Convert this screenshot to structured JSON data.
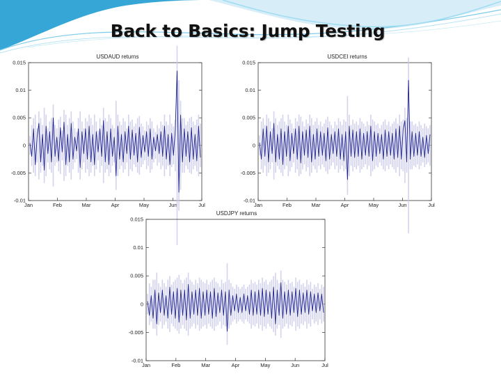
{
  "slide": {
    "title": "Back to Basics: Jump Testing"
  },
  "theme": {
    "swoosh_dark": "#1a8fc0",
    "swoosh_light": "#9fdcf2",
    "series_color": "#1a1f8c",
    "noise_color": "#c8c8e8"
  },
  "chart_data": [
    {
      "type": "line",
      "title": "USDAUD returns",
      "x_ticks": [
        "Jan",
        "Feb",
        "Mar",
        "Apr",
        "May",
        "Jun",
        "Jul"
      ],
      "y_ticks": [
        "0.015",
        "0.01",
        "0.005",
        "0",
        "-0.005",
        "-0.01"
      ],
      "ylim": [
        -0.01,
        0.015
      ],
      "xlim": [
        0,
        6
      ],
      "grid": false,
      "series": [
        {
          "values": [
            0.0004,
            -0.002,
            0.003,
            -0.0035,
            0.0015,
            0.004,
            -0.003,
            0.002,
            -0.0045,
            0.0035,
            -0.0015,
            0.0025,
            -0.003,
            0.005,
            -0.002,
            0.0015,
            -0.0028,
            0.0032,
            -0.0012,
            0.0042,
            -0.0035,
            0.002,
            -0.003,
            0.004,
            -0.0025,
            0.0015,
            -0.001,
            0.003,
            -0.004,
            0.0025,
            -0.0015,
            0.003,
            -0.0025,
            0.0035,
            -0.003,
            0.002,
            -0.0035,
            0.0025,
            -0.0012,
            0.003,
            -0.002,
            0.0045,
            -0.003,
            0.0025,
            -0.0035,
            0.003,
            -0.002,
            0.0015,
            -0.0055,
            0.0035,
            -0.0025,
            0.002,
            -0.003,
            0.0025,
            -0.0015,
            0.0035,
            -0.0025,
            0.0028,
            -0.0018,
            0.0022,
            -0.003,
            0.0033,
            -0.0022,
            0.0018,
            -0.0012,
            0.0025,
            -0.002,
            0.003,
            -0.0025,
            0.0015,
            -0.001,
            0.002,
            -0.0015,
            0.0025,
            -0.002,
            0.0035,
            -0.0025,
            0.002,
            -0.0035,
            0.0022,
            -0.0018,
            0.0028,
            0.0135,
            -0.0085,
            0.0055,
            -0.003,
            0.003,
            -0.002,
            0.0025,
            -0.003,
            0.0032,
            -0.0025,
            0.002,
            -0.0028,
            0.0035,
            -0.0022
          ]
        }
      ]
    },
    {
      "type": "line",
      "title": "USDCEI returns",
      "x_ticks": [
        "Jan",
        "Feb",
        "Mar",
        "Apr",
        "May",
        "Jun",
        "Jul"
      ],
      "y_ticks": [
        "0.015",
        "0.01",
        "0.005",
        "0",
        "-0.005",
        "-0.01"
      ],
      "ylim": [
        -0.01,
        0.015
      ],
      "xlim": [
        0,
        6
      ],
      "grid": false,
      "series": [
        {
          "values": [
            0.0005,
            -0.0025,
            0.003,
            -0.002,
            0.0035,
            -0.003,
            0.0025,
            -0.0015,
            0.004,
            -0.003,
            0.002,
            -0.0025,
            0.003,
            -0.0035,
            0.0025,
            -0.002,
            0.0035,
            -0.0028,
            0.0022,
            -0.0015,
            0.003,
            -0.0025,
            0.0035,
            -0.0032,
            0.0025,
            -0.0018,
            0.0028,
            -0.0022,
            0.0035,
            -0.003,
            0.002,
            -0.0025,
            0.003,
            -0.002,
            0.0025,
            -0.0018,
            0.0022,
            -0.0028,
            0.0032,
            -0.0025,
            0.002,
            -0.0015,
            0.0025,
            -0.002,
            0.003,
            -0.0025,
            0.002,
            -0.0028,
            0.0025,
            -0.0062,
            0.0035,
            -0.002,
            0.0028,
            -0.0022,
            0.0025,
            -0.002,
            0.003,
            -0.0025,
            0.0022,
            -0.0018,
            0.0025,
            -0.002,
            0.0035,
            -0.0028,
            0.0025,
            -0.002,
            0.0022,
            -0.0015,
            0.002,
            -0.0025,
            0.0028,
            -0.002,
            0.0025,
            -0.0018,
            0.0022,
            -0.0025,
            0.003,
            -0.0022,
            0.0035,
            -0.0025,
            0.0028,
            0.0045,
            -0.003,
            0.0118,
            -0.0025,
            0.0025,
            -0.002,
            0.0022,
            -0.0018,
            0.0025,
            -0.002,
            0.0015,
            -0.0022,
            0.0018,
            -0.0015,
            0.002
          ]
        }
      ]
    },
    {
      "type": "line",
      "title": "USDJPY returns",
      "x_ticks": [
        "Jan",
        "Feb",
        "Mar",
        "Apr",
        "May",
        "Jun",
        "Jul"
      ],
      "y_ticks": [
        "0.015",
        "0.01",
        "0.005",
        "0",
        "-0.005",
        "-0.01"
      ],
      "ylim": [
        -0.01,
        0.015
      ],
      "xlim": [
        0,
        6
      ],
      "grid": false,
      "series": [
        {
          "values": [
            0.0005,
            -0.002,
            0.0015,
            -0.0025,
            0.0025,
            -0.0035,
            0.002,
            -0.0015,
            0.0025,
            -0.002,
            0.0015,
            -0.0025,
            0.003,
            -0.0018,
            0.0022,
            -0.0025,
            0.0028,
            -0.0032,
            0.0025,
            -0.002,
            0.0025,
            -0.0028,
            0.0035,
            -0.0025,
            0.0022,
            -0.0018,
            0.0025,
            -0.002,
            0.0028,
            -0.0025,
            0.0022,
            -0.002,
            0.0025,
            -0.0018,
            0.0022,
            -0.0025,
            0.0028,
            -0.0022,
            0.002,
            -0.0015,
            0.0025,
            -0.002,
            0.0022,
            -0.0048,
            0.0025,
            -0.002,
            0.0015,
            -0.0012,
            0.0018,
            -0.0015,
            0.0012,
            -0.0015,
            0.0018,
            -0.0012,
            0.0015,
            -0.0018,
            0.0025,
            -0.002,
            0.0022,
            -0.0018,
            0.0025,
            -0.002,
            0.0028,
            -0.0022,
            0.0025,
            -0.0018,
            0.0022,
            -0.0025,
            0.003,
            -0.0035,
            0.0025,
            -0.002,
            0.0038,
            -0.0025,
            0.0022,
            -0.0018,
            0.0025,
            -0.002,
            0.0022,
            -0.0015,
            0.0028,
            -0.0022,
            0.0025,
            -0.0018,
            0.002,
            -0.0015,
            0.0025,
            -0.0018,
            0.0022,
            -0.0012,
            0.0018,
            -0.0015,
            0.002,
            -0.0012,
            0.0018,
            -0.0015
          ]
        }
      ]
    }
  ]
}
